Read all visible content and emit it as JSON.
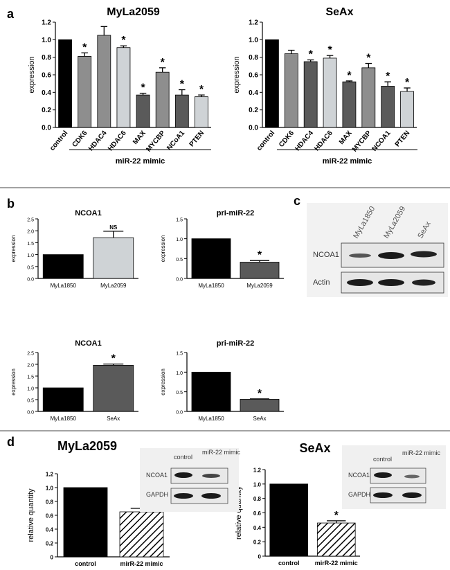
{
  "panels": {
    "a": "a",
    "b": "b",
    "c": "c",
    "d": "d"
  },
  "western_c": {
    "lanes": [
      "MyLa1850",
      "MyLa2059",
      "SeAx"
    ],
    "rows": [
      "NCOA1",
      "Actin"
    ]
  },
  "western_d1": {
    "lanes": [
      "control",
      "miR-22 mimic"
    ],
    "rows": [
      "NCOA1",
      "GAPDH"
    ]
  },
  "western_d2": {
    "lanes": [
      "control",
      "miR-22 mimic"
    ],
    "rows": [
      "NCOA1",
      "GAPDH"
    ]
  },
  "colors": {
    "black": "#000000",
    "grey_dark": "#5a5a5a",
    "grey_mid": "#8e8e8e",
    "grey_light": "#cfd3d6"
  },
  "chart_data": [
    {
      "id": "a1",
      "type": "bar",
      "title": "MyLa2059",
      "ylabel": "expression",
      "ylim": [
        0,
        1.2
      ],
      "yticks": [
        "0.0",
        "0.2",
        "0.4",
        "0.6",
        "0.8",
        "1.0",
        "1.2"
      ],
      "group_label": "miR-22 mimic",
      "categories": [
        "control",
        "CDK6",
        "HDAC4",
        "HDAC6",
        "MAX",
        "MYCBP",
        "NCoA1",
        "PTEN"
      ],
      "values": [
        1.0,
        0.81,
        1.05,
        0.91,
        0.37,
        0.63,
        0.37,
        0.35
      ],
      "errors": [
        0,
        0.04,
        0.1,
        0.02,
        0.02,
        0.05,
        0.06,
        0.02
      ],
      "stars": [
        "",
        "*",
        "",
        "*",
        "*",
        "*",
        "*",
        "*"
      ]
    },
    {
      "id": "a2",
      "type": "bar",
      "title": "SeAx",
      "ylabel": "expression",
      "ylim": [
        0,
        1.2
      ],
      "yticks": [
        "0.0",
        "0.2",
        "0.4",
        "0.6",
        "0.8",
        "1.0",
        "1.2"
      ],
      "group_label": "miR-22 mimic",
      "categories": [
        "control",
        "CDK6",
        "HDAC4",
        "HDAC6",
        "MAX",
        "MYCBP",
        "NCOA1",
        "PTEN"
      ],
      "values": [
        1.0,
        0.84,
        0.75,
        0.79,
        0.52,
        0.68,
        0.47,
        0.41
      ],
      "errors": [
        0,
        0.04,
        0.02,
        0.03,
        0.01,
        0.05,
        0.05,
        0.04
      ],
      "stars": [
        "",
        "",
        "*",
        "*",
        "*",
        "*",
        "*",
        "*"
      ]
    },
    {
      "id": "b1",
      "type": "bar",
      "title": "NCOA1",
      "ylabel": "expression",
      "ylim": [
        0,
        2.5
      ],
      "yticks": [
        "0.0",
        "0.5",
        "1.0",
        "1.5",
        "2.0",
        "2.5"
      ],
      "categories": [
        "MyLa1850",
        "MyLa2059"
      ],
      "values": [
        1.0,
        1.71
      ],
      "errors": [
        0,
        0.27
      ],
      "stars": [
        "",
        "NS"
      ]
    },
    {
      "id": "b2",
      "type": "bar",
      "title": "pri-miR-22",
      "ylabel": "expression",
      "ylim": [
        0,
        1.5
      ],
      "yticks": [
        "0.0",
        "0.5",
        "1.0",
        "1.5"
      ],
      "categories": [
        "MyLa1850",
        "MyLa2059"
      ],
      "values": [
        1.0,
        0.41
      ],
      "errors": [
        0,
        0.04
      ],
      "stars": [
        "",
        "*"
      ]
    },
    {
      "id": "b3",
      "type": "bar",
      "title": "NCOA1",
      "ylabel": "expression",
      "ylim": [
        0,
        2.5
      ],
      "yticks": [
        "0.0",
        "0.5",
        "1.0",
        "1.5",
        "2.0",
        "2.5"
      ],
      "categories": [
        "MyLa1850",
        "SeAx"
      ],
      "values": [
        1.0,
        1.96
      ],
      "errors": [
        0,
        0.05
      ],
      "stars": [
        "",
        "*"
      ]
    },
    {
      "id": "b4",
      "type": "bar",
      "title": "pri-miR-22",
      "ylabel": "expression",
      "ylim": [
        0,
        1.5
      ],
      "yticks": [
        "0.0",
        "0.5",
        "1.0",
        "1.5"
      ],
      "categories": [
        "MyLa1850",
        "SeAx"
      ],
      "values": [
        1.0,
        0.31
      ],
      "errors": [
        0,
        0.01
      ],
      "stars": [
        "",
        "*"
      ]
    },
    {
      "id": "d1",
      "type": "bar",
      "title": "MyLa2059",
      "ylabel": "relative quantity",
      "ylim": [
        0,
        1.2
      ],
      "yticks": [
        "0",
        "0.2",
        "0.4",
        "0.6",
        "0.8",
        "1.0",
        "1.2"
      ],
      "categories": [
        "control",
        "mirR-22 mimic"
      ],
      "values": [
        1.0,
        0.65
      ],
      "errors": [
        0,
        0.05
      ],
      "stars": [
        "",
        ""
      ]
    },
    {
      "id": "d2",
      "type": "bar",
      "title": "SeAx",
      "ylabel": "relative quantity",
      "ylim": [
        0,
        1.2
      ],
      "yticks": [
        "0",
        "0.2",
        "0.4",
        "0.6",
        "0.8",
        "1.0",
        "1.2"
      ],
      "categories": [
        "control",
        "mirR-22 mimic"
      ],
      "values": [
        1.0,
        0.46
      ],
      "errors": [
        0,
        0.03
      ],
      "stars": [
        "",
        "*"
      ]
    }
  ]
}
